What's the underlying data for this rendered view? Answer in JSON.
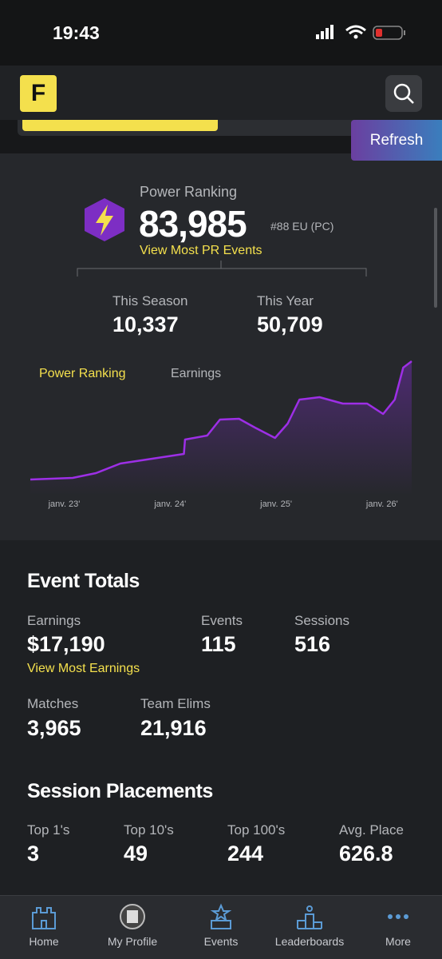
{
  "status_bar": {
    "time": "19:43"
  },
  "header": {
    "logo": "F",
    "refresh": "Refresh"
  },
  "power_ranking": {
    "label": "Power Ranking",
    "value": "83,985",
    "rank": "#88 EU (PC)",
    "link": "View Most PR Events",
    "stats": [
      {
        "label": "This Season",
        "value": "10,337"
      },
      {
        "label": "This Year",
        "value": "50,709"
      }
    ],
    "tabs": [
      "Power Ranking",
      "Earnings"
    ]
  },
  "chart_data": {
    "type": "line",
    "x": [
      2022.68,
      2023.08,
      2023.3,
      2023.53,
      2023.83,
      2024.13,
      2024.14,
      2024.35,
      2024.47,
      2024.65,
      2024.8,
      2024.99,
      2025.11,
      2025.22,
      2025.41,
      2025.63,
      2025.86,
      2026.01,
      2026.12,
      2026.2,
      2026.28
    ],
    "series": [
      {
        "name": "Power Ranking",
        "color": "#9d2fe6",
        "values": [
          10000,
          11000,
          14000,
          20000,
          23000,
          26000,
          35000,
          37500,
          47500,
          48000,
          42500,
          36000,
          45000,
          60000,
          61500,
          57500,
          57500,
          51000,
          60000,
          80000,
          84000
        ]
      }
    ],
    "xlim": [
      2022.68,
      2026.28
    ],
    "xticks": [
      {
        "value": 2023,
        "label": "janv. 23'"
      },
      {
        "value": 2024,
        "label": "janv. 24'"
      },
      {
        "value": 2025,
        "label": "janv. 25'"
      },
      {
        "value": 2026,
        "label": "janv. 26'"
      }
    ],
    "ylim": [
      0,
      90000
    ]
  },
  "event_totals": {
    "title": "Event Totals",
    "items": [
      {
        "label": "Earnings",
        "value": "$17,190"
      },
      {
        "label": "Events",
        "value": "115"
      },
      {
        "label": "Sessions",
        "value": "516"
      },
      {
        "label": "Matches",
        "value": "3,965"
      },
      {
        "label": "Team Elims",
        "value": "21,916"
      }
    ],
    "link": "View Most Earnings"
  },
  "session_placements": {
    "title": "Session Placements",
    "items": [
      {
        "label": "Top 1's",
        "value": "3"
      },
      {
        "label": "Top 10's",
        "value": "49"
      },
      {
        "label": "Top 100's",
        "value": "244"
      },
      {
        "label": "Avg. Place",
        "value": "626.8"
      }
    ]
  },
  "nav": [
    "Home",
    "My Profile",
    "Events",
    "Leaderboards",
    "More"
  ]
}
